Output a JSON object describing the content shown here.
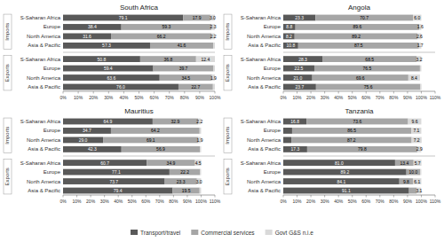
{
  "chart_data": [
    {
      "type": "bar",
      "orientation": "horizontal",
      "stacked": true,
      "title": "South Africa",
      "categories": [
        "S-Saharan Africa",
        "Europe",
        "North America",
        "Asia & Pacific",
        "S-Saharan Africa",
        "Europe",
        "North America",
        "Asia & Pacific"
      ],
      "annotations": [
        "Imports",
        "Exports"
      ],
      "series": [
        {
          "name": "Transport/travel",
          "color": "#595959",
          "values": [
            79.1,
            38.4,
            31.6,
            57.3,
            50.8,
            59.4,
            63.6,
            76.0
          ],
          "value_labels": [
            "79.1",
            "38.4",
            "31.6",
            "57.3",
            "50.8",
            "59.4",
            "63.6",
            "76.0"
          ]
        },
        {
          "name": "Commercial services",
          "color": "#A6A6A6",
          "values": [
            17.9,
            59.3,
            66.2,
            41.6,
            36.8,
            39.7,
            34.5,
            22.7
          ],
          "value_labels": [
            "17.9",
            "59.3",
            "66.2",
            "41.6",
            "36.8",
            "39.7",
            "34.5",
            "22.7"
          ]
        },
        {
          "name": "Govt G&S n.i.e",
          "color": "#D9D9D9",
          "values": [
            3.0,
            2.3,
            2.2,
            1.1,
            12.4,
            0.9,
            1.9,
            1.3
          ],
          "value_labels": [
            "3.0",
            "2.3",
            "2.2",
            null,
            "12.4",
            null,
            "1.9",
            null
          ]
        }
      ],
      "xlim": [
        0,
        100
      ],
      "xticks": [
        {
          "value": 0,
          "label": "0%"
        },
        {
          "value": 10,
          "label": "10%"
        },
        {
          "value": 20,
          "label": "20%"
        },
        {
          "value": 30,
          "label": "30%"
        },
        {
          "value": 40,
          "label": "40%"
        },
        {
          "value": 50,
          "label": "50%"
        },
        {
          "value": 60,
          "label": "60%"
        },
        {
          "value": 70,
          "label": "70%"
        },
        {
          "value": 80,
          "label": "80%"
        },
        {
          "value": 90,
          "label": "90%"
        },
        {
          "value": 100,
          "label": "100%"
        }
      ],
      "grid": false,
      "data_labels": true,
      "legend": "bottom"
    },
    {
      "type": "bar",
      "orientation": "horizontal",
      "stacked": true,
      "title": "Angola",
      "categories": [
        "S-Saharan Africa",
        "Europe",
        "North America",
        "Asia & Pacific",
        "S-Saharan Africa",
        "Europe",
        "North America",
        "Asia & Pacific"
      ],
      "annotations": [
        "Imports",
        "Exports"
      ],
      "series": [
        {
          "name": "Transport/travel",
          "color": "#595959",
          "values": [
            23.3,
            8.8,
            8.2,
            10.8,
            28.3,
            22.5,
            21.0,
            23.7
          ],
          "value_labels": [
            "23.3",
            "8.8",
            "8.2",
            "10.8",
            "28.3",
            "22.5",
            "21.0",
            "23.7"
          ]
        },
        {
          "name": "Commercial services",
          "color": "#A6A6A6",
          "values": [
            70.7,
            89.6,
            89.2,
            87.5,
            68.5,
            76.5,
            69.6,
            75.6
          ],
          "value_labels": [
            "70.7",
            "89.6",
            "89.2",
            "87.5",
            "68.5",
            "76.5",
            "69.6",
            "75.6"
          ]
        },
        {
          "name": "Govt G&S n.i.e",
          "color": "#D9D9D9",
          "values": [
            6.0,
            1.6,
            2.6,
            1.7,
            3.2,
            1.0,
            8.4,
            0.8
          ],
          "value_labels": [
            "6.0",
            "1.6",
            "2.6",
            "1.7",
            "3.2",
            null,
            "8.4",
            null
          ]
        }
      ],
      "xlim": [
        0,
        110
      ],
      "xticks": [
        {
          "value": 0,
          "label": "0%"
        },
        {
          "value": 10,
          "label": "10%"
        },
        {
          "value": 20,
          "label": "20%"
        },
        {
          "value": 30,
          "label": "30%"
        },
        {
          "value": 40,
          "label": "40%"
        },
        {
          "value": 50,
          "label": "50%"
        },
        {
          "value": 60,
          "label": "60%"
        },
        {
          "value": 70,
          "label": "70%"
        },
        {
          "value": 80,
          "label": "80%"
        },
        {
          "value": 90,
          "label": "90%"
        },
        {
          "value": 100,
          "label": "100%"
        },
        {
          "value": 110,
          "label": "110%"
        }
      ],
      "grid": false,
      "data_labels": true
    },
    {
      "type": "bar",
      "orientation": "horizontal",
      "stacked": true,
      "title": "Mauritius",
      "categories": [
        "S-Saharan Africa",
        "Europe",
        "North America",
        "Asia & Pacific",
        "S-Saharan Africa",
        "Europe",
        "North America",
        "Asia & Pacific"
      ],
      "annotations": [
        "Imports",
        "Exports"
      ],
      "series": [
        {
          "name": "Transport/travel",
          "color": "#595959",
          "values": [
            64.9,
            34.7,
            29.0,
            42.3,
            60.7,
            77.1,
            73.7,
            79.4
          ],
          "value_labels": [
            "64.9",
            "34.7",
            "29.0",
            "42.3",
            "60.7",
            "77.1",
            "73.7",
            "79.4"
          ]
        },
        {
          "name": "Commercial services",
          "color": "#A6A6A6",
          "values": [
            32.9,
            64.2,
            69.1,
            56.9,
            34.9,
            22.2,
            23.3,
            19.5
          ],
          "value_labels": [
            "32.9",
            "64.2",
            "69.1",
            "56.9",
            "34.9",
            "22.2",
            "23.3",
            "19.5"
          ]
        },
        {
          "name": "Govt G&S n.i.e",
          "color": "#D9D9D9",
          "values": [
            2.2,
            1.1,
            1.9,
            0.8,
            4.5,
            0.7,
            3.0,
            1.1
          ],
          "value_labels": [
            "2.2",
            null,
            "1.9",
            null,
            "4.5",
            null,
            "3.0",
            null
          ]
        }
      ],
      "xlim": [
        0,
        110
      ],
      "xticks": [
        {
          "value": 0,
          "label": "0%"
        },
        {
          "value": 10,
          "label": "10%"
        },
        {
          "value": 20,
          "label": "20%"
        },
        {
          "value": 30,
          "label": "30%"
        },
        {
          "value": 40,
          "label": "40%"
        },
        {
          "value": 50,
          "label": "50%"
        },
        {
          "value": 60,
          "label": "60%"
        },
        {
          "value": 70,
          "label": "70%"
        },
        {
          "value": 80,
          "label": "80%"
        },
        {
          "value": 90,
          "label": "90%"
        },
        {
          "value": 100,
          "label": "100%"
        },
        {
          "value": 110,
          "label": "110%"
        }
      ],
      "grid": false,
      "data_labels": true
    },
    {
      "type": "bar",
      "orientation": "horizontal",
      "stacked": true,
      "title": "Tanzania",
      "categories": [
        "S-Saharan Africa",
        "Europe",
        "North America",
        "Asia & Pacific",
        "S-Saharan Africa",
        "Europe",
        "North America",
        "Asia & Pacific"
      ],
      "annotations": [
        "Imports",
        "Exports"
      ],
      "series": [
        {
          "name": "Transport/travel",
          "color": "#595959",
          "values": [
            16.8,
            6.4,
            5.8,
            17.3,
            81.0,
            89.2,
            84.1,
            91.1
          ],
          "value_labels": [
            "16.8",
            null,
            null,
            "17.3",
            "81.0",
            "89.2",
            "84.1",
            "91.1"
          ]
        },
        {
          "name": "Commercial services",
          "color": "#A6A6A6",
          "values": [
            73.6,
            86.5,
            87.2,
            79.8,
            13.4,
            10.0,
            9.8,
            5.7
          ],
          "value_labels": [
            "73.6",
            "86.5",
            "87.2",
            "79.8",
            "13.4",
            "10.0",
            "9.8",
            null
          ]
        },
        {
          "name": "Govt G&S n.i.e",
          "color": "#D9D9D9",
          "values": [
            9.6,
            7.1,
            7.2,
            2.9,
            5.7,
            0.8,
            6.1,
            3.1
          ],
          "value_labels": [
            "9.6",
            "7.1",
            "7.2",
            "2.9",
            "5.7",
            null,
            "6.1",
            "3.1"
          ]
        }
      ],
      "xlim": [
        0,
        110
      ],
      "xticks": [
        {
          "value": 0,
          "label": "0%"
        },
        {
          "value": 10,
          "label": "10%"
        },
        {
          "value": 20,
          "label": "20%"
        },
        {
          "value": 30,
          "label": "30%"
        },
        {
          "value": 40,
          "label": "40%"
        },
        {
          "value": 50,
          "label": "50%"
        },
        {
          "value": 60,
          "label": "60%"
        },
        {
          "value": 70,
          "label": "70%"
        },
        {
          "value": 80,
          "label": "80%"
        },
        {
          "value": 90,
          "label": "90%"
        },
        {
          "value": 100,
          "label": "100%"
        },
        {
          "value": 110,
          "label": "110%"
        }
      ],
      "grid": false,
      "data_labels": true
    }
  ]
}
